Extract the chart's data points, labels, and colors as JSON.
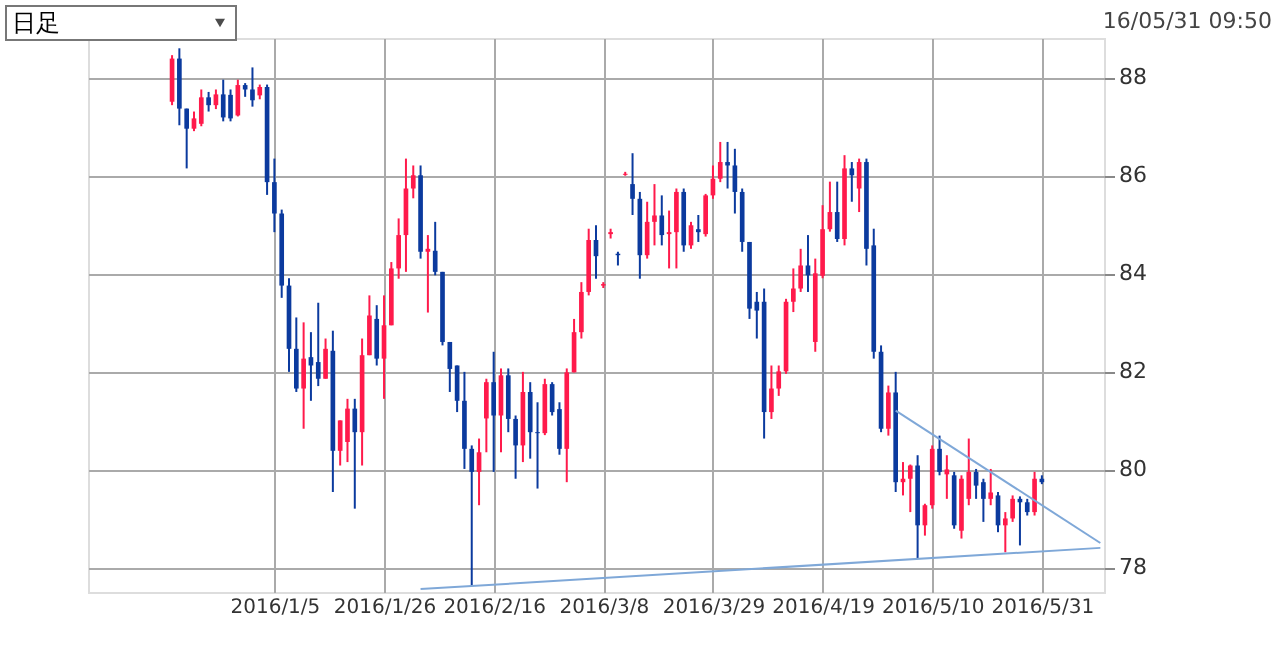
{
  "chart_data": {
    "type": "candlestick",
    "categories": [
      null,
      null,
      null,
      null,
      null,
      null,
      null,
      null,
      null,
      null,
      null,
      null,
      null,
      null,
      null,
      null,
      null,
      null,
      null,
      null,
      null,
      null,
      null,
      null,
      null,
      "2016/1/5",
      null,
      null,
      null,
      null,
      null,
      null,
      null,
      null,
      null,
      null,
      null,
      null,
      null,
      null,
      "2016/1/26",
      null,
      null,
      null,
      null,
      null,
      null,
      null,
      null,
      null,
      null,
      null,
      null,
      null,
      null,
      "2016/2/16",
      null,
      null,
      null,
      null,
      null,
      null,
      null,
      null,
      null,
      null,
      null,
      null,
      null,
      null,
      "2016/3/8",
      null,
      null,
      null,
      null,
      null,
      null,
      null,
      null,
      null,
      null,
      null,
      null,
      null,
      null,
      "2016/3/29",
      null,
      null,
      null,
      null,
      null,
      null,
      null,
      null,
      null,
      null,
      null,
      null,
      null,
      null,
      "2016/4/19",
      null,
      null,
      null,
      null,
      null,
      null,
      null,
      null,
      null,
      null,
      null,
      null,
      null,
      null,
      "2016/5/10",
      null,
      null,
      null,
      null,
      null,
      null,
      null,
      null,
      null,
      null,
      null,
      null,
      null,
      null,
      "2016/5/31",
      null,
      null,
      null,
      null,
      null,
      null,
      null,
      null
    ],
    "ohlc": [
      null,
      null,
      null,
      null,
      null,
      null,
      null,
      null,
      null,
      null,
      null,
      [
        87.5,
        88.45,
        87.43,
        88.38
      ],
      [
        88.38,
        88.59,
        87.02,
        87.36
      ],
      [
        87.36,
        87.36,
        86.14,
        86.95
      ],
      [
        86.95,
        87.3,
        86.9,
        87.16
      ],
      [
        87.05,
        87.75,
        87.0,
        87.59
      ],
      [
        87.59,
        87.7,
        87.3,
        87.43
      ],
      [
        87.43,
        87.75,
        87.35,
        87.65
      ],
      [
        87.65,
        87.95,
        87.1,
        87.18
      ],
      [
        87.64,
        87.75,
        87.1,
        87.16
      ],
      [
        87.22,
        87.95,
        87.2,
        87.84
      ],
      [
        87.84,
        87.88,
        87.6,
        87.75
      ],
      [
        87.75,
        88.2,
        87.4,
        87.53
      ],
      [
        87.63,
        87.85,
        87.55,
        87.8
      ],
      [
        87.8,
        87.85,
        85.6,
        85.86
      ],
      [
        85.86,
        86.34,
        84.84,
        85.22
      ],
      [
        85.22,
        85.3,
        83.5,
        83.75
      ],
      [
        83.75,
        83.9,
        81.99,
        82.46
      ],
      [
        82.46,
        83.1,
        81.58,
        81.65
      ],
      [
        81.65,
        83.0,
        80.83,
        82.26
      ],
      [
        82.29,
        82.8,
        81.4,
        82.12
      ],
      [
        82.19,
        83.4,
        81.7,
        81.85
      ],
      [
        81.85,
        82.67,
        81.85,
        82.46
      ],
      [
        82.42,
        82.83,
        79.54,
        80.38
      ],
      [
        80.38,
        81.0,
        80.08,
        81.0
      ],
      [
        80.56,
        81.44,
        80.15,
        81.24
      ],
      [
        81.24,
        81.44,
        79.2,
        80.76
      ],
      [
        80.76,
        82.67,
        80.08,
        82.33
      ],
      [
        82.33,
        83.55,
        82.33,
        83.14
      ],
      [
        83.07,
        83.35,
        82.12,
        82.26
      ],
      [
        82.26,
        83.55,
        81.44,
        82.94
      ],
      [
        82.94,
        84.23,
        82.94,
        84.1
      ],
      [
        84.1,
        85.12,
        83.89,
        84.78
      ],
      [
        84.78,
        86.34,
        84.03,
        85.73
      ],
      [
        85.73,
        86.2,
        85.53,
        86.0
      ],
      [
        86.0,
        86.2,
        84.3,
        84.44
      ],
      [
        84.44,
        84.78,
        83.2,
        84.5
      ],
      [
        84.46,
        85.05,
        83.96,
        84.03
      ],
      [
        84.03,
        84.03,
        82.53,
        82.6
      ],
      [
        82.6,
        82.6,
        81.58,
        82.05
      ],
      [
        82.12,
        82.12,
        81.17,
        81.4
      ],
      [
        81.4,
        81.99,
        80.01,
        80.42
      ],
      [
        80.42,
        80.49,
        77.63,
        79.95
      ],
      [
        79.95,
        80.63,
        79.27,
        80.35
      ],
      [
        81.04,
        81.85,
        80.35,
        81.78
      ],
      [
        81.78,
        82.4,
        79.95,
        81.1
      ],
      [
        81.1,
        82.06,
        80.35,
        81.92
      ],
      [
        81.92,
        82.06,
        80.76,
        81.03
      ],
      [
        81.03,
        81.1,
        79.81,
        80.49
      ],
      [
        80.49,
        81.99,
        80.15,
        81.58
      ],
      [
        81.58,
        81.78,
        80.22,
        80.76
      ],
      [
        80.76,
        81.37,
        79.61,
        80.74
      ],
      [
        80.74,
        81.85,
        80.7,
        81.74
      ],
      [
        81.74,
        81.78,
        81.1,
        81.17
      ],
      [
        81.23,
        81.37,
        80.3,
        80.42
      ],
      [
        80.42,
        82.06,
        79.74,
        81.98
      ],
      [
        81.98,
        83.07,
        81.98,
        82.8
      ],
      [
        82.8,
        83.82,
        82.67,
        83.62
      ],
      [
        83.62,
        84.91,
        83.55,
        84.68
      ],
      [
        84.68,
        84.98,
        83.89,
        84.35
      ],
      [
        83.75,
        83.82,
        83.7,
        83.78
      ],
      [
        84.8,
        84.91,
        84.71,
        84.84
      ],
      [
        84.4,
        84.44,
        84.16,
        84.37
      ],
      [
        86.01,
        86.07,
        85.99,
        86.03
      ],
      [
        85.82,
        86.45,
        85.19,
        85.52
      ],
      [
        85.52,
        85.66,
        83.89,
        84.37
      ],
      [
        84.37,
        85.46,
        84.3,
        85.05
      ],
      [
        85.05,
        85.82,
        84.57,
        85.18
      ],
      [
        85.18,
        85.59,
        84.57,
        84.78
      ],
      [
        84.8,
        85.28,
        84.1,
        84.84
      ],
      [
        84.84,
        85.73,
        84.1,
        85.66
      ],
      [
        85.66,
        85.73,
        84.44,
        84.57
      ],
      [
        84.57,
        85.05,
        84.5,
        84.98
      ],
      [
        84.9,
        85.19,
        84.64,
        84.84
      ],
      [
        84.8,
        85.62,
        84.75,
        85.59
      ],
      [
        85.59,
        86.2,
        85.52,
        85.93
      ],
      [
        85.93,
        86.68,
        85.86,
        86.27
      ],
      [
        86.27,
        86.68,
        85.73,
        86.2
      ],
      [
        86.2,
        86.54,
        85.22,
        85.66
      ],
      [
        85.66,
        85.73,
        84.44,
        84.64
      ],
      [
        84.64,
        84.64,
        83.07,
        83.28
      ],
      [
        83.42,
        83.62,
        82.67,
        83.24
      ],
      [
        83.42,
        83.69,
        80.63,
        81.17
      ],
      [
        81.17,
        82.12,
        81.03,
        81.65
      ],
      [
        81.65,
        82.12,
        81.5,
        82.0
      ],
      [
        82.0,
        83.48,
        81.95,
        83.42
      ],
      [
        83.42,
        84.1,
        83.21,
        83.69
      ],
      [
        83.69,
        84.5,
        83.62,
        84.16
      ],
      [
        84.16,
        84.78,
        83.62,
        83.96
      ],
      [
        82.6,
        84.3,
        82.4,
        84.0
      ],
      [
        83.95,
        85.39,
        83.9,
        84.9
      ],
      [
        84.9,
        85.87,
        84.85,
        85.25
      ],
      [
        85.25,
        85.87,
        84.64,
        84.7
      ],
      [
        84.7,
        86.41,
        84.57,
        86.14
      ],
      [
        86.14,
        86.27,
        85.46,
        86.0
      ],
      [
        85.73,
        86.34,
        85.25,
        86.27
      ],
      [
        86.27,
        86.34,
        84.16,
        84.5
      ],
      [
        84.57,
        84.91,
        82.26,
        82.4
      ],
      [
        82.4,
        82.53,
        80.76,
        80.83
      ],
      [
        80.83,
        81.71,
        80.69,
        81.57
      ],
      [
        81.57,
        81.99,
        79.54,
        79.74
      ],
      [
        79.74,
        80.15,
        79.47,
        79.81
      ],
      [
        79.81,
        80.1,
        79.13,
        80.08
      ],
      [
        80.08,
        80.29,
        78.18,
        78.86
      ],
      [
        78.86,
        79.3,
        78.65,
        79.27
      ],
      [
        79.27,
        80.49,
        79.2,
        80.42
      ],
      [
        80.42,
        80.69,
        79.88,
        79.95
      ],
      [
        79.9,
        80.29,
        79.4,
        80.0
      ],
      [
        79.88,
        79.95,
        78.79,
        78.86
      ],
      [
        78.75,
        79.88,
        78.59,
        79.81
      ],
      [
        79.4,
        80.63,
        79.27,
        79.95
      ],
      [
        79.95,
        80.01,
        79.4,
        79.67
      ],
      [
        79.74,
        79.81,
        78.93,
        79.4
      ],
      [
        79.4,
        80.01,
        79.27,
        79.53
      ],
      [
        79.47,
        79.54,
        78.72,
        78.86
      ],
      [
        78.86,
        79.13,
        78.31,
        79.0
      ],
      [
        79.0,
        79.47,
        78.93,
        79.4
      ],
      [
        79.4,
        79.45,
        78.45,
        79.33
      ],
      [
        79.33,
        79.4,
        79.06,
        79.13
      ],
      [
        79.13,
        79.95,
        79.06,
        79.81
      ],
      [
        79.81,
        79.88,
        79.7,
        79.74
      ],
      null,
      null,
      null,
      null,
      null,
      null,
      null,
      null
    ],
    "colors": [
      null,
      null,
      null,
      null,
      null,
      null,
      null,
      null,
      null,
      null,
      null,
      "#ff1a4b",
      "#0b3a9e",
      "#0b3a9e",
      "#ff1a4b",
      "#ff1a4b",
      "#0b3a9e",
      "#ff1a4b",
      "#0b3a9e",
      "#0b3a9e",
      "#ff1a4b",
      "#0b3a9e",
      "#0b3a9e",
      "#ff1a4b",
      "#0b3a9e",
      "#0b3a9e",
      "#0b3a9e",
      "#0b3a9e",
      "#0b3a9e",
      "#ff1a4b",
      "#0b3a9e",
      "#0b3a9e",
      "#ff1a4b",
      "#0b3a9e",
      "#ff1a4b",
      "#ff1a4b",
      "#0b3a9e",
      "#ff1a4b",
      "#ff1a4b",
      "#0b3a9e",
      "#ff1a4b",
      "#ff1a4b",
      "#ff1a4b",
      "#ff1a4b",
      "#ff1a4b",
      "#0b3a9e",
      "#ff1a4b",
      "#0b3a9e",
      "#0b3a9e",
      "#0b3a9e",
      "#0b3a9e",
      "#0b3a9e",
      "#0b3a9e",
      "#ff1a4b",
      "#ff1a4b",
      "#0b3a9e",
      "#ff1a4b",
      "#0b3a9e",
      "#0b3a9e",
      "#ff1a4b",
      "#0b3a9e",
      "#0b3a9e",
      "#ff1a4b",
      "#0b3a9e",
      "#0b3a9e",
      "#ff1a4b",
      "#ff1a4b",
      "#ff1a4b",
      "#ff1a4b",
      "#0b3a9e",
      "#ff1a4b",
      "#ff1a4b",
      "#0b3a9e",
      "#ff1a4b",
      "#0b3a9e",
      "#0b3a9e",
      "#ff1a4b",
      "#ff1a4b",
      "#0b3a9e",
      "#ff1a4b",
      "#ff1a4b",
      "#0b3a9e",
      "#ff1a4b",
      "#0b3a9e",
      "#ff1a4b",
      "#ff1a4b",
      "#ff1a4b",
      "#0b3a9e",
      "#0b3a9e",
      "#0b3a9e",
      "#0b3a9e",
      "#0b3a9e",
      "#0b3a9e",
      "#ff1a4b",
      "#ff1a4b",
      "#ff1a4b",
      "#ff1a4b",
      "#ff1a4b",
      "#0b3a9e",
      "#ff1a4b",
      "#ff1a4b",
      "#ff1a4b",
      "#0b3a9e",
      "#ff1a4b",
      "#0b3a9e",
      "#ff1a4b",
      "#0b3a9e",
      "#0b3a9e",
      "#0b3a9e",
      "#ff1a4b",
      "#0b3a9e",
      "#ff1a4b",
      "#ff1a4b",
      "#0b3a9e",
      "#ff1a4b",
      "#ff1a4b",
      "#0b3a9e",
      "#ff1a4b",
      "#0b3a9e",
      "#ff1a4b",
      "#ff1a4b",
      "#0b3a9e",
      "#0b3a9e",
      "#ff1a4b",
      "#0b3a9e",
      "#ff1a4b",
      "#ff1a4b",
      "#0b3a9e",
      "#0b3a9e",
      "#ff1a4b",
      "#0b3a9e",
      null,
      null,
      null,
      null,
      null,
      null,
      null,
      null
    ],
    "ylim": [
      77.5,
      88.8
    ],
    "yticks": [
      78,
      80,
      82,
      84,
      86,
      88
    ],
    "grid": true,
    "series": [
      {
        "type": "line",
        "color": "#7fa8d8",
        "values": [
          null,
          null,
          null,
          null,
          null,
          null,
          null,
          null,
          null,
          null,
          null,
          null,
          null,
          null,
          null,
          null,
          null,
          null,
          null,
          null,
          null,
          null,
          null,
          null,
          null,
          null,
          null,
          null,
          null,
          null,
          null,
          null,
          null,
          null,
          null,
          null,
          null,
          null,
          null,
          null,
          null,
          null,
          null,
          null,
          null,
          77.56,
          null,
          null,
          null,
          null,
          null,
          null,
          null,
          null,
          null,
          null,
          null,
          null,
          null,
          null,
          null,
          null,
          null,
          null,
          null,
          null,
          null,
          null,
          null,
          null,
          null,
          null,
          null,
          null,
          null,
          null,
          null,
          null,
          null,
          null,
          null,
          null,
          null,
          null,
          null,
          null,
          null,
          null,
          null,
          null,
          null,
          null,
          null,
          null,
          null,
          null,
          null,
          null,
          null,
          null,
          null,
          null,
          null,
          null,
          null,
          null,
          null,
          null,
          null,
          null,
          null,
          null,
          null,
          null,
          null,
          null,
          null,
          null,
          null,
          null,
          null,
          null,
          null,
          null,
          null,
          null,
          null,
          null,
          null,
          null,
          null,
          null,
          null,
          null,
          null,
          null,
          null,
          null,
          78.4
        ]
      },
      {
        "type": "line",
        "color": "#7fa8d8",
        "values": [
          null,
          null,
          null,
          null,
          null,
          null,
          null,
          null,
          null,
          null,
          null,
          null,
          null,
          null,
          null,
          null,
          null,
          null,
          null,
          null,
          null,
          null,
          null,
          null,
          null,
          null,
          null,
          null,
          null,
          null,
          null,
          null,
          null,
          null,
          null,
          null,
          null,
          null,
          null,
          null,
          null,
          null,
          null,
          null,
          null,
          null,
          null,
          null,
          null,
          null,
          null,
          null,
          null,
          null,
          null,
          null,
          null,
          null,
          null,
          null,
          null,
          null,
          null,
          null,
          null,
          null,
          null,
          null,
          null,
          null,
          null,
          null,
          null,
          null,
          null,
          null,
          null,
          null,
          null,
          null,
          null,
          null,
          null,
          null,
          null,
          null,
          null,
          null,
          null,
          null,
          null,
          null,
          null,
          null,
          null,
          null,
          null,
          null,
          null,
          null,
          null,
          null,
          null,
          null,
          null,
          null,
          null,
          null,
          null,
          null,
          81.2,
          null,
          null,
          null,
          null,
          null,
          null,
          null,
          null,
          null,
          null,
          null,
          null,
          null,
          null,
          null,
          null,
          null,
          null,
          null,
          null,
          null,
          null,
          null,
          null,
          null,
          null,
          null,
          78.5
        ]
      }
    ],
    "annotations": [
      "日足",
      "16/05/31 09:50"
    ]
  }
}
